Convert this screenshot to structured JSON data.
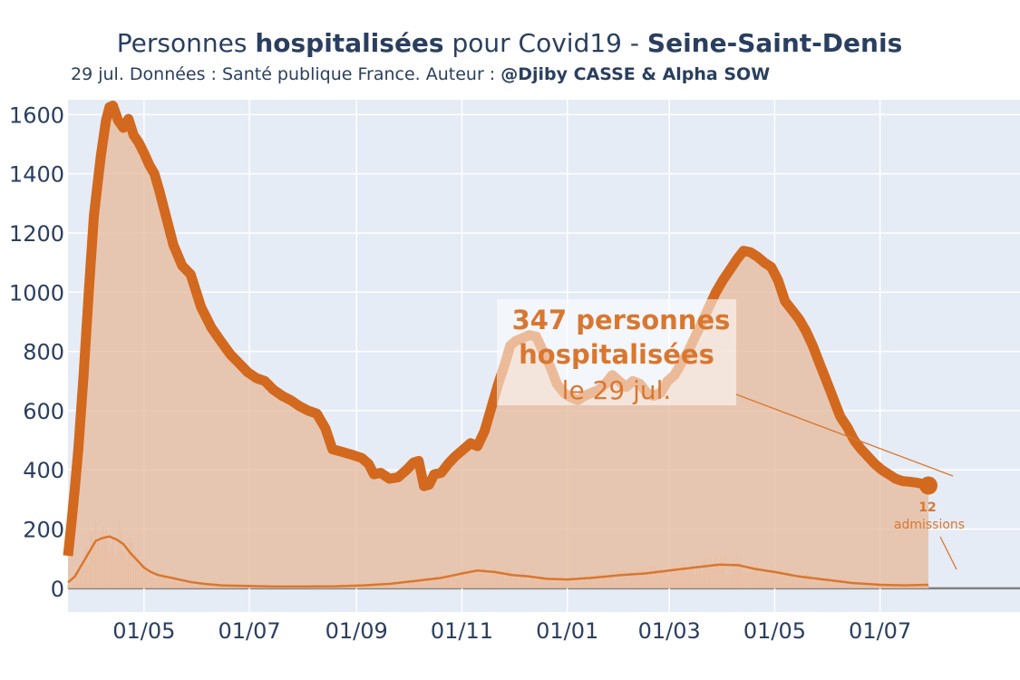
{
  "title": {
    "part1": "Personnes ",
    "part2_bold": "hospitalisées",
    "part3": " pour Covid19 - ",
    "part4_bold": "Seine-Saint-Denis"
  },
  "subtitle": {
    "text": "29 jul. Données : Santé publique France. Auteur : ",
    "bold": "@Djiby CASSE & Alpha SOW"
  },
  "annotation": {
    "line1": "347 personnes",
    "line2": "hospitalisées",
    "line3": "le 29 jul."
  },
  "admissions_annotation": {
    "value": "12",
    "label": "admissions"
  },
  "colors": {
    "plot_bg": "#e5ecf6",
    "hosp_line": "#d2691e",
    "hosp_fill": "#e7bfa4",
    "adm_bars": "#f0a37a",
    "adm_line": "#d9772f",
    "annotation_text": "#d9772f",
    "text": "#2a3f5f",
    "grid": "#ffffff",
    "zero_line": "#808080"
  },
  "chart_data": {
    "type": "area",
    "x_type": "date",
    "xlim": [
      "2020-03-18",
      "2021-09-20"
    ],
    "ylim": [
      -80,
      1650
    ],
    "y_ticks": [
      0,
      200,
      400,
      600,
      800,
      1000,
      1200,
      1400,
      1600
    ],
    "x_ticks": [
      "2020-05-01",
      "2020-07-01",
      "2020-09-01",
      "2020-11-01",
      "2021-01-01",
      "2021-03-01",
      "2021-05-01",
      "2021-07-01"
    ],
    "x_tick_labels": [
      "01/05",
      "01/07",
      "01/09",
      "01/11",
      "01/01",
      "01/03",
      "01/05",
      "01/07"
    ],
    "grid": true,
    "series": [
      {
        "kind": "area-line",
        "points": [
          [
            "2020-03-18",
            110
          ],
          [
            "2020-03-20",
            220
          ],
          [
            "2020-03-22",
            340
          ],
          [
            "2020-03-24",
            470
          ],
          [
            "2020-03-27",
            720
          ],
          [
            "2020-03-30",
            1000
          ],
          [
            "2020-04-02",
            1260
          ],
          [
            "2020-04-06",
            1460
          ],
          [
            "2020-04-09",
            1580
          ],
          [
            "2020-04-11",
            1625
          ],
          [
            "2020-04-13",
            1630
          ],
          [
            "2020-04-16",
            1580
          ],
          [
            "2020-04-19",
            1555
          ],
          [
            "2020-04-22",
            1585
          ],
          [
            "2020-04-25",
            1530
          ],
          [
            "2020-04-28",
            1505
          ],
          [
            "2020-05-01",
            1470
          ],
          [
            "2020-05-04",
            1430
          ],
          [
            "2020-05-07",
            1400
          ],
          [
            "2020-05-10",
            1340
          ],
          [
            "2020-05-14",
            1250
          ],
          [
            "2020-05-18",
            1160
          ],
          [
            "2020-05-23",
            1090
          ],
          [
            "2020-05-28",
            1060
          ],
          [
            "2020-06-03",
            950
          ],
          [
            "2020-06-09",
            880
          ],
          [
            "2020-06-15",
            830
          ],
          [
            "2020-06-20",
            790
          ],
          [
            "2020-06-25",
            760
          ],
          [
            "2020-06-30",
            730
          ],
          [
            "2020-07-05",
            710
          ],
          [
            "2020-07-10",
            700
          ],
          [
            "2020-07-15",
            670
          ],
          [
            "2020-07-20",
            650
          ],
          [
            "2020-07-25",
            635
          ],
          [
            "2020-07-30",
            615
          ],
          [
            "2020-08-04",
            600
          ],
          [
            "2020-08-09",
            590
          ],
          [
            "2020-08-14",
            540
          ],
          [
            "2020-08-18",
            470
          ],
          [
            "2020-08-24",
            460
          ],
          [
            "2020-08-30",
            450
          ],
          [
            "2020-09-04",
            440
          ],
          [
            "2020-09-08",
            420
          ],
          [
            "2020-09-11",
            385
          ],
          [
            "2020-09-15",
            390
          ],
          [
            "2020-09-20",
            370
          ],
          [
            "2020-09-25",
            375
          ],
          [
            "2020-09-30",
            400
          ],
          [
            "2020-10-04",
            425
          ],
          [
            "2020-10-07",
            430
          ],
          [
            "2020-10-10",
            345
          ],
          [
            "2020-10-13",
            350
          ],
          [
            "2020-10-16",
            385
          ],
          [
            "2020-10-20",
            390
          ],
          [
            "2020-10-24",
            420
          ],
          [
            "2020-10-28",
            445
          ],
          [
            "2020-11-02",
            470
          ],
          [
            "2020-11-06",
            490
          ],
          [
            "2020-11-10",
            480
          ],
          [
            "2020-11-14",
            530
          ],
          [
            "2020-11-18",
            610
          ],
          [
            "2020-11-22",
            690
          ],
          [
            "2020-11-26",
            760
          ],
          [
            "2020-11-29",
            820
          ],
          [
            "2020-12-02",
            835
          ],
          [
            "2020-12-06",
            845
          ],
          [
            "2020-12-10",
            855
          ],
          [
            "2020-12-14",
            850
          ],
          [
            "2020-12-18",
            800
          ],
          [
            "2020-12-22",
            750
          ],
          [
            "2020-12-26",
            690
          ],
          [
            "2020-12-30",
            660
          ],
          [
            "2021-01-03",
            645
          ],
          [
            "2021-01-07",
            635
          ],
          [
            "2021-01-11",
            650
          ],
          [
            "2021-01-15",
            660
          ],
          [
            "2021-01-19",
            670
          ],
          [
            "2021-01-23",
            690
          ],
          [
            "2021-01-27",
            720
          ],
          [
            "2021-01-31",
            700
          ],
          [
            "2021-02-04",
            680
          ],
          [
            "2021-02-08",
            700
          ],
          [
            "2021-02-12",
            690
          ],
          [
            "2021-02-16",
            660
          ],
          [
            "2021-02-20",
            650
          ],
          [
            "2021-02-24",
            660
          ],
          [
            "2021-02-28",
            700
          ],
          [
            "2021-03-04",
            720
          ],
          [
            "2021-03-08",
            760
          ],
          [
            "2021-03-12",
            800
          ],
          [
            "2021-03-16",
            850
          ],
          [
            "2021-03-20",
            900
          ],
          [
            "2021-03-24",
            950
          ],
          [
            "2021-03-28",
            1000
          ],
          [
            "2021-04-01",
            1040
          ],
          [
            "2021-04-05",
            1075
          ],
          [
            "2021-04-09",
            1110
          ],
          [
            "2021-04-13",
            1140
          ],
          [
            "2021-04-17",
            1135
          ],
          [
            "2021-04-21",
            1120
          ],
          [
            "2021-04-25",
            1100
          ],
          [
            "2021-04-29",
            1085
          ],
          [
            "2021-05-03",
            1040
          ],
          [
            "2021-05-07",
            970
          ],
          [
            "2021-05-11",
            940
          ],
          [
            "2021-05-15",
            910
          ],
          [
            "2021-05-19",
            870
          ],
          [
            "2021-05-23",
            820
          ],
          [
            "2021-05-27",
            760
          ],
          [
            "2021-05-31",
            700
          ],
          [
            "2021-06-04",
            640
          ],
          [
            "2021-06-08",
            580
          ],
          [
            "2021-06-12",
            545
          ],
          [
            "2021-06-16",
            500
          ],
          [
            "2021-06-20",
            470
          ],
          [
            "2021-06-24",
            445
          ],
          [
            "2021-06-28",
            420
          ],
          [
            "2021-07-02",
            400
          ],
          [
            "2021-07-06",
            385
          ],
          [
            "2021-07-10",
            370
          ],
          [
            "2021-07-14",
            362
          ],
          [
            "2021-07-18",
            360
          ],
          [
            "2021-07-22",
            357
          ],
          [
            "2021-07-26",
            352
          ],
          [
            "2021-07-29",
            347
          ]
        ]
      },
      {
        "kind": "bars-and-line",
        "points": [
          [
            "2020-03-18",
            20
          ],
          [
            "2020-03-22",
            40
          ],
          [
            "2020-03-26",
            80
          ],
          [
            "2020-03-30",
            120
          ],
          [
            "2020-04-03",
            160
          ],
          [
            "2020-04-07",
            170
          ],
          [
            "2020-04-11",
            175
          ],
          [
            "2020-04-15",
            165
          ],
          [
            "2020-04-19",
            150
          ],
          [
            "2020-04-23",
            120
          ],
          [
            "2020-04-27",
            95
          ],
          [
            "2020-05-01",
            70
          ],
          [
            "2020-05-05",
            55
          ],
          [
            "2020-05-09",
            45
          ],
          [
            "2020-05-13",
            40
          ],
          [
            "2020-05-17",
            35
          ],
          [
            "2020-05-21",
            30
          ],
          [
            "2020-05-25",
            25
          ],
          [
            "2020-05-29",
            20
          ],
          [
            "2020-06-05",
            15
          ],
          [
            "2020-06-15",
            10
          ],
          [
            "2020-06-30",
            8
          ],
          [
            "2020-07-15",
            6
          ],
          [
            "2020-08-01",
            6
          ],
          [
            "2020-08-20",
            7
          ],
          [
            "2020-09-05",
            10
          ],
          [
            "2020-09-20",
            15
          ],
          [
            "2020-10-05",
            25
          ],
          [
            "2020-10-20",
            35
          ],
          [
            "2020-11-01",
            50
          ],
          [
            "2020-11-10",
            60
          ],
          [
            "2020-11-20",
            55
          ],
          [
            "2020-11-30",
            45
          ],
          [
            "2020-12-10",
            40
          ],
          [
            "2020-12-20",
            32
          ],
          [
            "2021-01-01",
            30
          ],
          [
            "2021-01-15",
            35
          ],
          [
            "2021-02-01",
            45
          ],
          [
            "2021-02-15",
            50
          ],
          [
            "2021-03-01",
            60
          ],
          [
            "2021-03-15",
            70
          ],
          [
            "2021-03-30",
            80
          ],
          [
            "2021-04-10",
            78
          ],
          [
            "2021-04-20",
            65
          ],
          [
            "2021-05-01",
            55
          ],
          [
            "2021-05-15",
            40
          ],
          [
            "2021-06-01",
            28
          ],
          [
            "2021-06-15",
            18
          ],
          [
            "2021-07-01",
            12
          ],
          [
            "2021-07-15",
            10
          ],
          [
            "2021-07-29",
            12
          ]
        ]
      }
    ]
  }
}
